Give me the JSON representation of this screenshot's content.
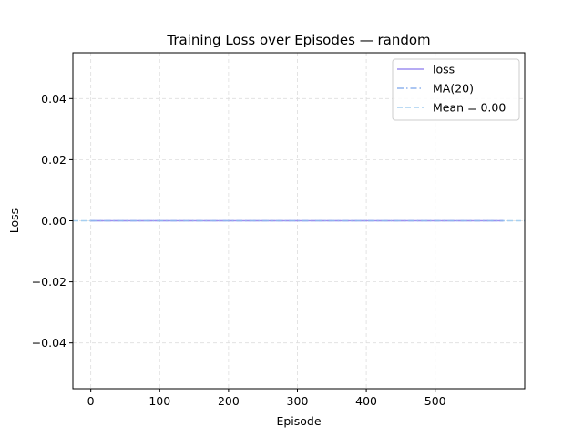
{
  "chart_data": {
    "type": "line",
    "title": "Training Loss over Episodes — random",
    "xlabel": "Episode",
    "ylabel": "Loss",
    "xlim": [
      -26,
      630
    ],
    "ylim": [
      -0.055,
      0.055
    ],
    "xticks": [
      0,
      100,
      200,
      300,
      400,
      500
    ],
    "xtick_labels": [
      "0",
      "100",
      "200",
      "300",
      "400",
      "500"
    ],
    "yticks": [
      -0.04,
      -0.02,
      0.0,
      0.02,
      0.04
    ],
    "ytick_labels": [
      "−0.04",
      "−0.02",
      "0.00",
      "0.02",
      "0.04"
    ],
    "grid": true,
    "legend_position": "top-right",
    "series": [
      {
        "name": "loss",
        "style": "solid",
        "color": "#9d8ff0",
        "x_range": [
          0,
          599
        ],
        "y_constant": 0.0
      },
      {
        "name": "MA(20)",
        "style": "dashdot",
        "color": "#8fb3ee",
        "x_range": [
          0,
          599
        ],
        "y_constant": 0.0
      }
    ],
    "hlines": [
      {
        "name": "Mean = 0.00",
        "style": "dashed",
        "color": "#a6cff0",
        "y": 0.0
      }
    ],
    "legend": [
      "loss",
      "MA(20)",
      "Mean = 0.00"
    ]
  }
}
